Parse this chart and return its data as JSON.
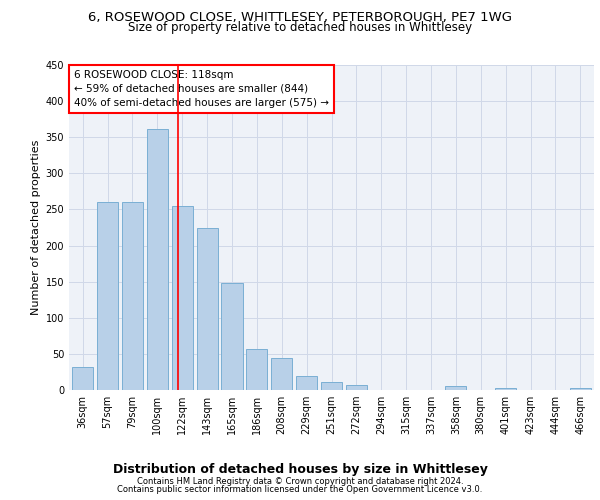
{
  "title1": "6, ROSEWOOD CLOSE, WHITTLESEY, PETERBOROUGH, PE7 1WG",
  "title2": "Size of property relative to detached houses in Whittlesey",
  "xlabel": "Distribution of detached houses by size in Whittlesey",
  "ylabel": "Number of detached properties",
  "footer1": "Contains HM Land Registry data © Crown copyright and database right 2024.",
  "footer2": "Contains public sector information licensed under the Open Government Licence v3.0.",
  "categories": [
    "36sqm",
    "57sqm",
    "79sqm",
    "100sqm",
    "122sqm",
    "143sqm",
    "165sqm",
    "186sqm",
    "208sqm",
    "229sqm",
    "251sqm",
    "272sqm",
    "294sqm",
    "315sqm",
    "337sqm",
    "358sqm",
    "380sqm",
    "401sqm",
    "423sqm",
    "444sqm",
    "466sqm"
  ],
  "values": [
    32,
    260,
    260,
    362,
    255,
    225,
    148,
    57,
    45,
    20,
    11,
    7,
    0,
    0,
    0,
    6,
    0,
    3,
    0,
    0,
    3
  ],
  "bar_color": "#b8d0e8",
  "bar_edge_color": "#7aafd4",
  "vline_color": "red",
  "vline_pos": 3.85,
  "annotation_text": "6 ROSEWOOD CLOSE: 118sqm\n← 59% of detached houses are smaller (844)\n40% of semi-detached houses are larger (575) →",
  "ylim": [
    0,
    450
  ],
  "yticks": [
    0,
    50,
    100,
    150,
    200,
    250,
    300,
    350,
    400,
    450
  ],
  "bg_color": "#eef2f8",
  "grid_color": "#d0d8e8",
  "title1_fontsize": 9.5,
  "title2_fontsize": 8.5,
  "xlabel_fontsize": 9,
  "ylabel_fontsize": 8,
  "tick_fontsize": 7,
  "annot_fontsize": 7.5,
  "footer_fontsize": 6
}
